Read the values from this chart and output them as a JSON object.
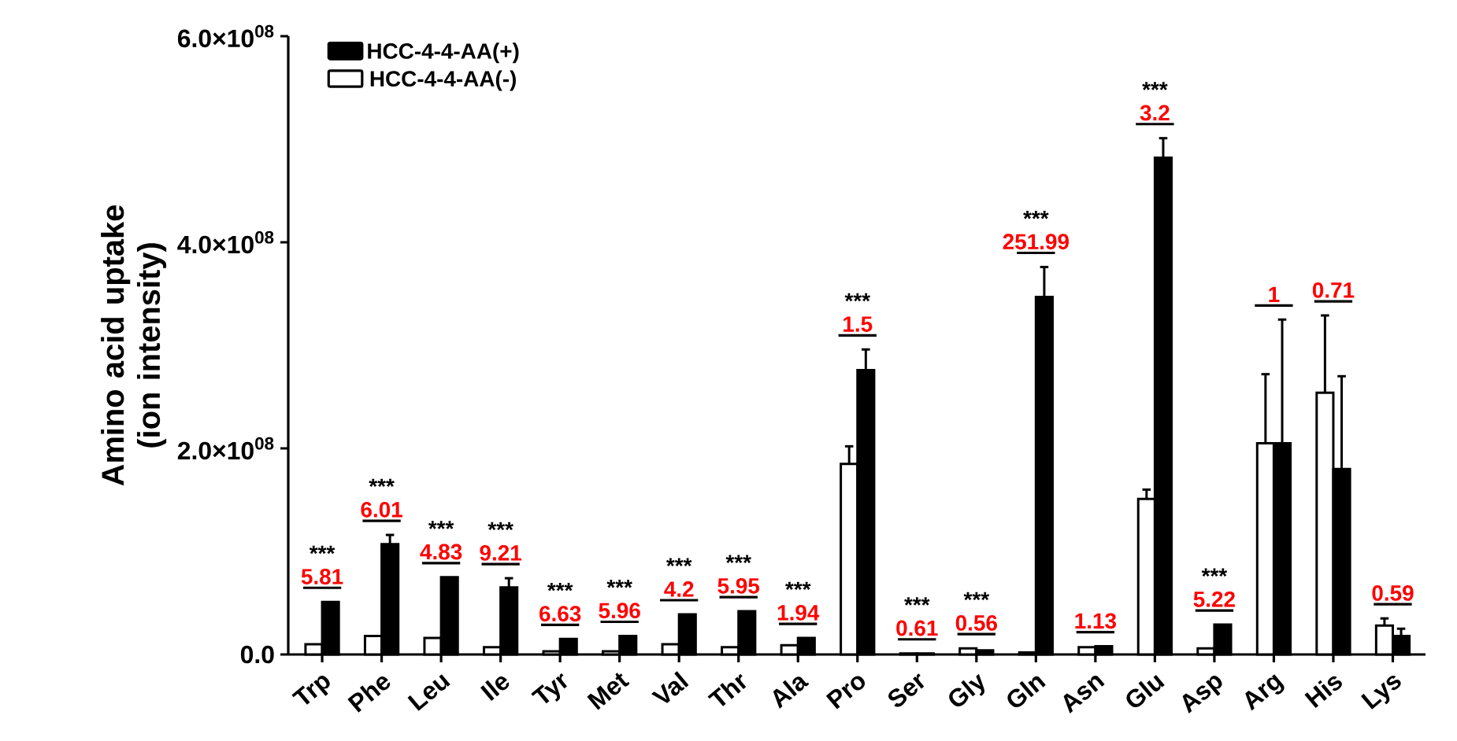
{
  "chart_data": {
    "type": "bar",
    "ylabel": "Amino acid uptake (ion intensity)",
    "categories": [
      "Trp",
      "Phe",
      "Leu",
      "Ile",
      "Tyr",
      "Met",
      "Val",
      "Thr",
      "Ala",
      "Pro",
      "Ser",
      "Gly",
      "Gln",
      "Asn",
      "Glu",
      "Asp",
      "Arg",
      "His",
      "Lys"
    ],
    "series": [
      {
        "name": "HCC-4-4-AA(-)",
        "color": "#ffffff",
        "values": [
          10000000.0,
          18000000.0,
          16000000.0,
          7000000.0,
          3000000.0,
          3000000.0,
          10000000.0,
          7000000.0,
          9000000.0,
          185000000.0,
          1000000.0,
          6000000.0,
          2000000.0,
          7000000.0,
          151000000.0,
          6000000.0,
          205000000.0,
          254000000.0,
          28000000.0
        ],
        "errors": [
          null,
          null,
          null,
          null,
          null,
          null,
          null,
          null,
          null,
          [
            185000000.0,
            202000000.0
          ],
          null,
          null,
          null,
          null,
          [
            151000000.0,
            160000000.0
          ],
          null,
          [
            205000000.0,
            272000000.0
          ],
          [
            254000000.0,
            329000000.0
          ],
          [
            28000000.0,
            35000000.0
          ]
        ]
      },
      {
        "name": "HCC-4-4-AA(+)",
        "color": "#000000",
        "values": [
          51000000.0,
          107000000.0,
          75000000.0,
          65000000.0,
          15000000.0,
          18000000.0,
          39000000.0,
          42000000.0,
          16000000.0,
          276000000.0,
          1000000.0,
          4000000.0,
          347000000.0,
          8000000.0,
          482000000.0,
          29000000.0,
          205000000.0,
          180000000.0,
          18000000.0
        ],
        "errors": [
          null,
          [
            107000000.0,
            116000000.0
          ],
          null,
          [
            65000000.0,
            74000000.0
          ],
          null,
          null,
          null,
          null,
          null,
          [
            276000000.0,
            296000000.0
          ],
          null,
          null,
          [
            347000000.0,
            376000000.0
          ],
          null,
          [
            482000000.0,
            501000000.0
          ],
          null,
          [
            205000000.0,
            325000000.0
          ],
          [
            180000000.0,
            270000000.0
          ],
          [
            18000000.0,
            25000000.0
          ]
        ]
      }
    ],
    "ylim": [
      0,
      600000000.0
    ],
    "yticks": [
      {
        "value": 0,
        "label": "0.0"
      },
      {
        "value": 200000000.0,
        "label": "2.0×10$^{08}$"
      },
      {
        "value": 400000000.0,
        "label": "4.0×10$^{08}$"
      },
      {
        "value": 600000000.0,
        "label": "6.0×10$^{08}$"
      }
    ],
    "legend": "top left",
    "annotations": [
      {
        "text": "***",
        "x": "Trp",
        "y": 51000000.0
      },
      {
        "text": "5.81",
        "x": "Trp",
        "y": 51000000.0
      },
      {
        "text": "***",
        "x": "Phe",
        "y": 116000000.0
      },
      {
        "text": "6.01",
        "x": "Phe",
        "y": 116000000.0
      },
      {
        "text": "***",
        "x": "Leu",
        "y": 75000000.0
      },
      {
        "text": "4.83",
        "x": "Leu",
        "y": 75000000.0
      },
      {
        "text": "***",
        "x": "Ile",
        "y": 74000000.0
      },
      {
        "text": "9.21",
        "x": "Ile",
        "y": 74000000.0
      },
      {
        "text": "***",
        "x": "Tyr",
        "y": 15000000.0
      },
      {
        "text": "6.63",
        "x": "Tyr",
        "y": 15000000.0
      },
      {
        "text": "***",
        "x": "Met",
        "y": 18000000.0
      },
      {
        "text": "5.96",
        "x": "Met",
        "y": 18000000.0
      },
      {
        "text": "***",
        "x": "Val",
        "y": 39000000.0
      },
      {
        "text": "4.2",
        "x": "Val",
        "y": 39000000.0
      },
      {
        "text": "***",
        "x": "Thr",
        "y": 42000000.0
      },
      {
        "text": "5.95",
        "x": "Thr",
        "y": 42000000.0
      },
      {
        "text": "***",
        "x": "Ala",
        "y": 16000000.0
      },
      {
        "text": "1.94",
        "x": "Ala",
        "y": 16000000.0
      },
      {
        "text": "***",
        "x": "Pro",
        "y": 296000000.0
      },
      {
        "text": "1.5",
        "x": "Pro",
        "y": 296000000.0
      },
      {
        "text": "***",
        "x": "Ser",
        "y": 1000000.0
      },
      {
        "text": "0.61",
        "x": "Ser",
        "y": 1000000.0
      },
      {
        "text": "***",
        "x": "Gly",
        "y": 6000000.0
      },
      {
        "text": "0.56",
        "x": "Gly",
        "y": 6000000.0
      },
      {
        "text": "***",
        "x": "Gln",
        "y": 376000000.0
      },
      {
        "text": "251.99",
        "x": "Gln",
        "y": 376000000.0
      },
      {
        "text": "1.13",
        "x": "Asn",
        "y": 8000000.0
      },
      {
        "text": "***",
        "x": "Glu",
        "y": 501000000.0
      },
      {
        "text": "3.2",
        "x": "Glu",
        "y": 501000000.0
      },
      {
        "text": "***",
        "x": "Asp",
        "y": 29000000.0
      },
      {
        "text": "5.22",
        "x": "Asp",
        "y": 29000000.0
      },
      {
        "text": "1",
        "x": "Arg",
        "y": 325000000.0
      },
      {
        "text": "0.71",
        "x": "His",
        "y": 329000000.0
      },
      {
        "text": "0.59",
        "x": "Lys",
        "y": 35000000.0
      }
    ]
  }
}
